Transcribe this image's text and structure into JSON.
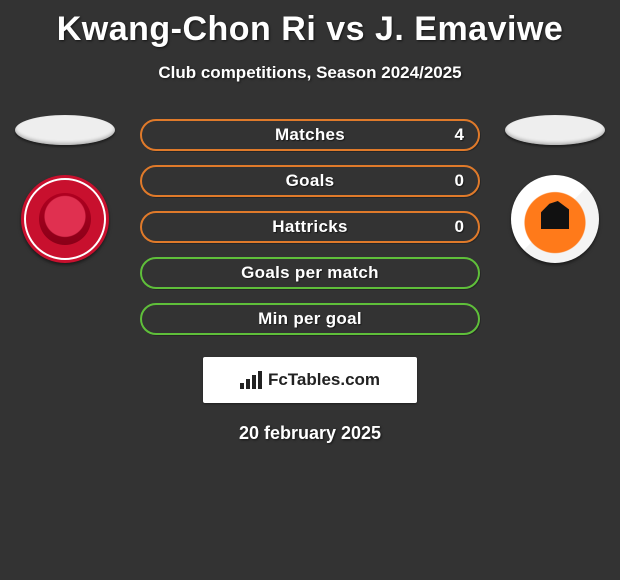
{
  "title": "Kwang-Chon Ri vs J. Emaviwe",
  "subtitle": "Club competitions, Season 2024/2025",
  "date": "20 february 2025",
  "logo_text": "FcTables.com",
  "colors": {
    "background": "#333333",
    "row_border_a": "#e07a2a",
    "row_border_b": "#5fbf3a",
    "text": "#ffffff"
  },
  "stats": [
    {
      "label": "Matches",
      "value": "4",
      "border": "#e07a2a"
    },
    {
      "label": "Goals",
      "value": "0",
      "border": "#e07a2a"
    },
    {
      "label": "Hattricks",
      "value": "0",
      "border": "#e07a2a"
    },
    {
      "label": "Goals per match",
      "value": "",
      "border": "#5fbf3a"
    },
    {
      "label": "Min per goal",
      "value": "",
      "border": "#5fbf3a"
    }
  ]
}
